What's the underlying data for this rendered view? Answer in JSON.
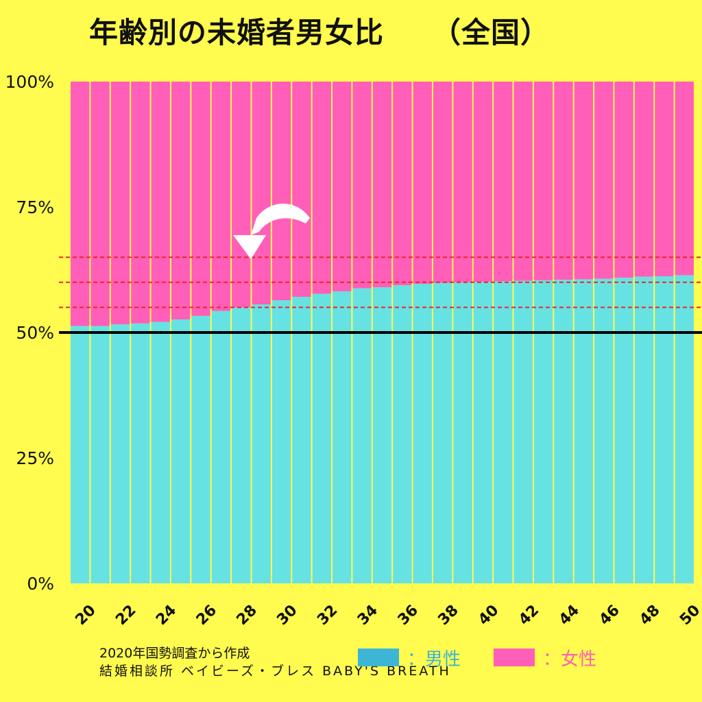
{
  "title": "年齢別の未婚者男女比",
  "region": "（全国）",
  "colors": {
    "male": "#67E2E3",
    "female": "#FF5FB8",
    "legend_male": "#3DB5D6",
    "background": "#FFFB4F",
    "bar_gap": "#FFFB4F",
    "reference_line": "#000000",
    "dashed_lines": "#E8262A",
    "arrow": "#FFFFFF"
  },
  "legend": {
    "male_label": "：男性",
    "female_label": "：女性"
  },
  "footer": {
    "source": "2020年国勢調査から作成",
    "brand": "結婚相談所 ベイビーズ・ブレス BABY'S BREATH"
  },
  "chart_data": {
    "type": "bar",
    "stacked": true,
    "x": [
      20,
      21,
      22,
      23,
      24,
      25,
      26,
      27,
      28,
      29,
      30,
      31,
      32,
      33,
      34,
      35,
      36,
      37,
      38,
      39,
      40,
      41,
      42,
      43,
      44,
      45,
      46,
      47,
      48,
      49,
      50
    ],
    "x_tick_labels": [
      "20",
      "22",
      "24",
      "26",
      "28",
      "30",
      "32",
      "34",
      "36",
      "38",
      "40",
      "42",
      "44",
      "46",
      "48",
      "50"
    ],
    "y_tick_labels": [
      "0%",
      "25%",
      "50%",
      "75%",
      "100%"
    ],
    "ylim": [
      0,
      100
    ],
    "series": [
      {
        "name": "男性",
        "values": [
          51.3,
          51.3,
          51.6,
          51.8,
          52.1,
          52.6,
          53.3,
          54.3,
          55.0,
          55.6,
          56.4,
          57.1,
          57.7,
          58.2,
          58.8,
          59.0,
          59.4,
          59.7,
          59.9,
          60.0,
          60.1,
          60.2,
          60.3,
          60.4,
          60.5,
          60.6,
          60.7,
          60.9,
          61.1,
          61.2,
          61.4
        ]
      },
      {
        "name": "女性",
        "values": [
          48.7,
          48.7,
          48.4,
          48.2,
          47.9,
          47.4,
          46.7,
          45.7,
          45.0,
          44.4,
          43.6,
          42.9,
          42.3,
          41.8,
          41.2,
          41.0,
          40.6,
          40.3,
          40.1,
          40.0,
          39.9,
          39.8,
          39.7,
          39.6,
          39.5,
          39.4,
          39.3,
          39.1,
          38.9,
          38.8,
          38.6
        ]
      }
    ],
    "reference_line": 50,
    "dashed_reference_lines": [
      55,
      60,
      65
    ],
    "annotation": "curved arrow pointing down-left toward age 28"
  }
}
